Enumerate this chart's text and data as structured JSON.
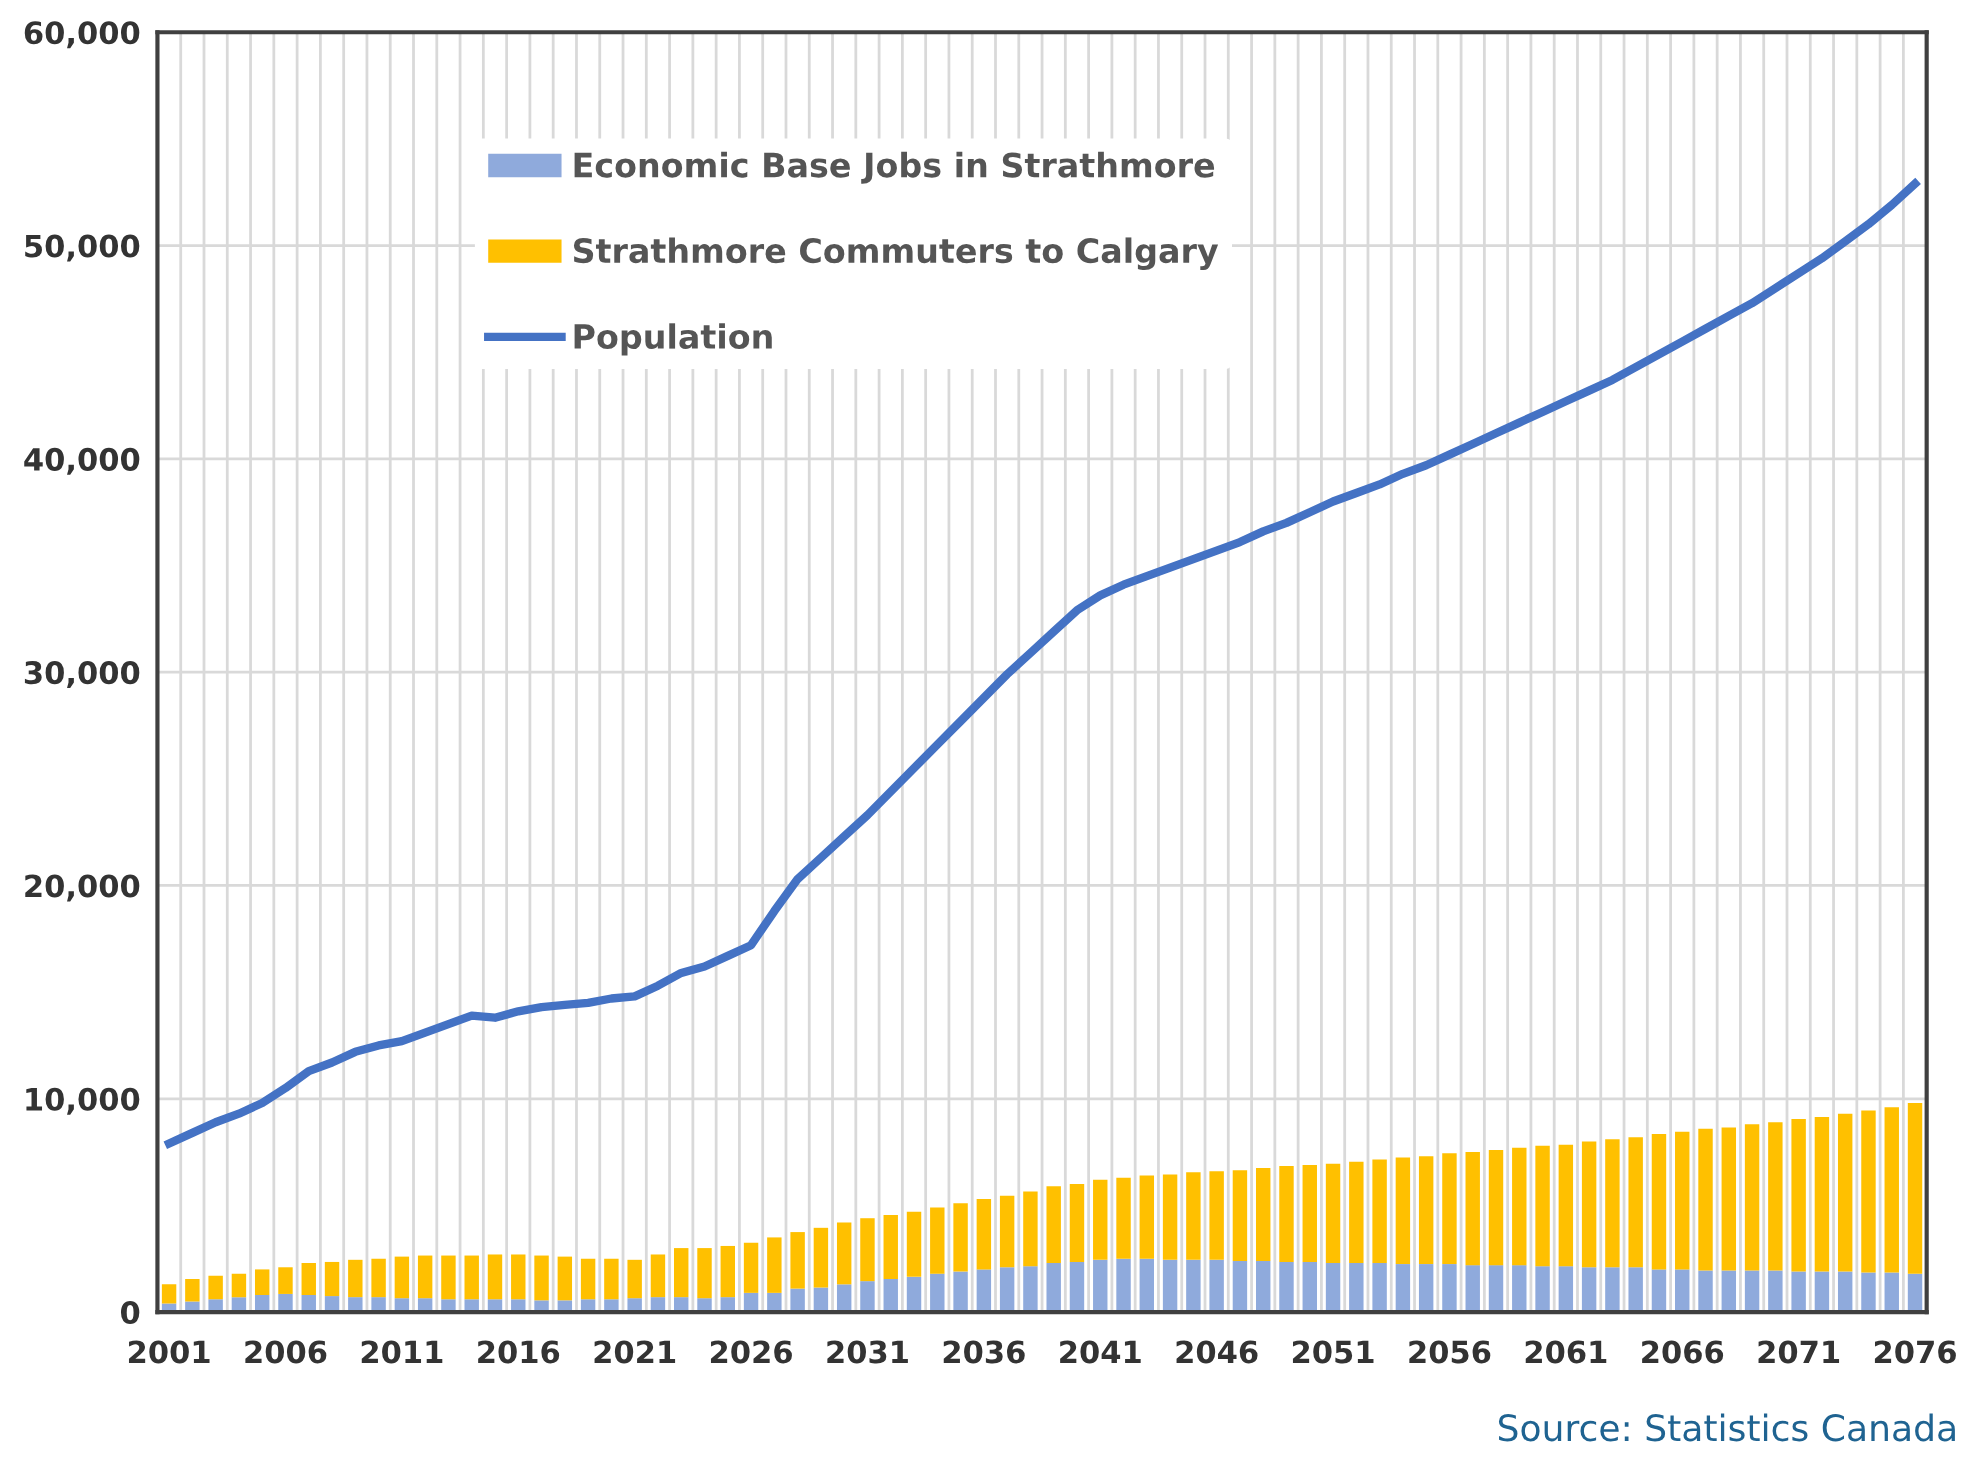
{
  "chart_data": {
    "type": "bar",
    "stacked": true,
    "categories": [
      "2001",
      null,
      null,
      null,
      null,
      "2006",
      null,
      null,
      null,
      null,
      "2011",
      null,
      null,
      null,
      null,
      "2016",
      null,
      null,
      null,
      null,
      "2021",
      null,
      null,
      null,
      null,
      "2026",
      null,
      null,
      null,
      null,
      "2031",
      null,
      null,
      null,
      null,
      "2036",
      null,
      null,
      null,
      null,
      "2041",
      null,
      null,
      null,
      null,
      "2046",
      null,
      null,
      null,
      null,
      "2051",
      null,
      null,
      null,
      null,
      "2056",
      null,
      null,
      null,
      null,
      "2061",
      null,
      null,
      null,
      null,
      "2066",
      null,
      null,
      null,
      null,
      "2071",
      null,
      null,
      null,
      null,
      "2076"
    ],
    "series": [
      {
        "name": "Economic Base Jobs in Strathmore",
        "color": "#8faadc",
        "values": [
          400,
          500,
          600,
          700,
          800,
          850,
          800,
          750,
          700,
          700,
          650,
          650,
          600,
          600,
          600,
          600,
          550,
          550,
          600,
          600,
          650,
          700,
          700,
          650,
          700,
          900,
          900,
          1100,
          1150,
          1300,
          1450,
          1550,
          1650,
          1800,
          1900,
          2000,
          2100,
          2150,
          2300,
          2350,
          2450,
          2500,
          2500,
          2450,
          2450,
          2450,
          2400,
          2400,
          2350,
          2350,
          2300,
          2300,
          2300,
          2250,
          2250,
          2250,
          2200,
          2200,
          2200,
          2150,
          2150,
          2100,
          2100,
          2100,
          2000,
          2000,
          1950,
          1950,
          1950,
          1950,
          1900,
          1900,
          1900,
          1850,
          1850,
          1800
        ]
      },
      {
        "name": "Strathmore Commuters to Calgary",
        "color": "#ffc000",
        "values": [
          900,
          1050,
          1100,
          1100,
          1200,
          1250,
          1500,
          1600,
          1750,
          1800,
          1950,
          2000,
          2050,
          2050,
          2100,
          2100,
          2100,
          2050,
          1900,
          1900,
          1800,
          2000,
          2300,
          2350,
          2400,
          2350,
          2600,
          2650,
          2800,
          2900,
          2950,
          3000,
          3050,
          3100,
          3200,
          3300,
          3350,
          3500,
          3600,
          3650,
          3750,
          3800,
          3900,
          4000,
          4100,
          4150,
          4250,
          4350,
          4500,
          4550,
          4650,
          4750,
          4850,
          5000,
          5050,
          5200,
          5300,
          5400,
          5500,
          5650,
          5700,
          5900,
          6000,
          6100,
          6350,
          6450,
          6650,
          6700,
          6850,
          6950,
          7150,
          7250,
          7400,
          7600,
          7750,
          8000
        ]
      },
      {
        "name": "Population",
        "type": "line",
        "color": "#4472c4",
        "values": [
          7900,
          8400,
          8900,
          9300,
          9800,
          10500,
          11300,
          11700,
          12200,
          12500,
          12700,
          13100,
          13500,
          13900,
          13800,
          14100,
          14300,
          14400,
          14500,
          14700,
          14800,
          15300,
          15900,
          16200,
          16700,
          17200,
          18800,
          20300,
          21300,
          22300,
          23300,
          24400,
          25500,
          26600,
          27700,
          28800,
          29900,
          30900,
          31900,
          32900,
          33600,
          34100,
          34500,
          34900,
          35300,
          35700,
          36100,
          36600,
          37000,
          37500,
          38000,
          38400,
          38800,
          39300,
          39700,
          40200,
          40700,
          41200,
          41700,
          42200,
          42700,
          43200,
          43700,
          44300,
          44900,
          45500,
          46100,
          46700,
          47300,
          48000,
          48700,
          49400,
          50200,
          51000,
          51900,
          52900
        ]
      }
    ],
    "ylim": [
      0,
      60000
    ],
    "yticks": [
      0,
      {
        "value": 10000,
        "label": "10,000"
      },
      {
        "value": 20000,
        "label": "20,000"
      },
      {
        "value": 30000,
        "label": "30,000"
      },
      {
        "value": 40000,
        "label": "40,000"
      },
      {
        "value": 50000,
        "label": "50,000"
      },
      {
        "value": 60000,
        "label": "60,000"
      }
    ],
    "grid": true,
    "legend": "top left",
    "marker": "none",
    "line_style": "solid",
    "annotations": [
      "Source: Statistics Canada"
    ]
  }
}
